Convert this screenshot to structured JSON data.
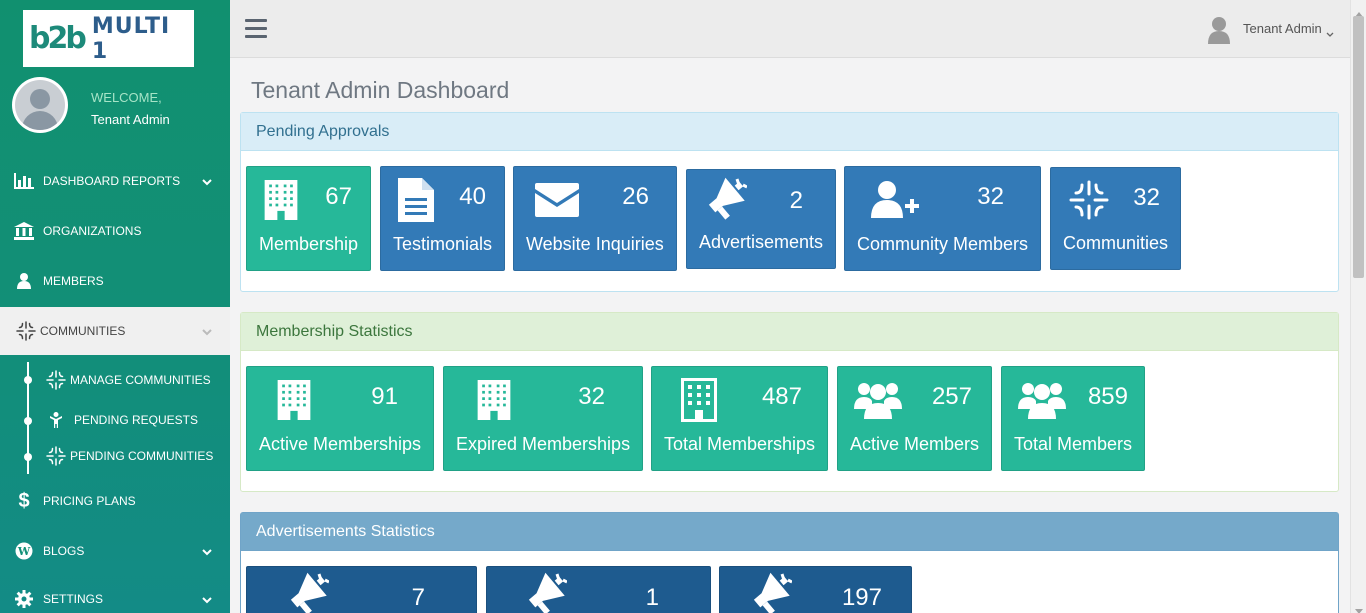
{
  "brand": {
    "logo_mark": "b2b",
    "logo_name": "MULTI 1"
  },
  "sidebar": {
    "welcome": "WELCOME,",
    "user_name": "Tenant Admin",
    "items": [
      {
        "label": "DASHBOARD REPORTS",
        "icon": "bar-chart-icon"
      },
      {
        "label": "ORGANIZATIONS",
        "icon": "bank-icon"
      },
      {
        "label": "MEMBERS",
        "icon": "user-icon"
      },
      {
        "label": "COMMUNITIES",
        "icon": "communities-icon"
      },
      {
        "label": "PRICING PLANS",
        "icon": "dollar-icon"
      },
      {
        "label": "BLOGS",
        "icon": "wordpress-icon"
      },
      {
        "label": "SETTINGS",
        "icon": "gear-icon"
      }
    ],
    "sub_items": [
      {
        "label": "MANAGE COMMUNITIES",
        "icon": "communities-icon"
      },
      {
        "label": "PENDING REQUESTS",
        "icon": "child-icon"
      },
      {
        "label": "PENDING COMMUNITIES",
        "icon": "communities-icon"
      }
    ]
  },
  "topbar": {
    "user_name": "Tenant Admin"
  },
  "page": {
    "title": "Tenant Admin Dashboard"
  },
  "pending": {
    "title": "Pending Approvals",
    "tiles": [
      {
        "value": "67",
        "label": "Membership",
        "icon": "building-icon"
      },
      {
        "value": "40",
        "label": "Testimonials",
        "icon": "file-text-icon"
      },
      {
        "value": "26",
        "label": "Website Inquiries",
        "icon": "envelope-icon"
      },
      {
        "value": "2",
        "label": "Advertisements",
        "icon": "bullhorn-icon"
      },
      {
        "value": "32",
        "label": "Community Members",
        "icon": "user-plus-icon"
      },
      {
        "value": "32",
        "label": "Communities",
        "icon": "communities-icon"
      }
    ]
  },
  "membership": {
    "title": "Membership Statistics",
    "tiles": [
      {
        "value": "91",
        "label": "Active Memberships",
        "icon": "building-icon"
      },
      {
        "value": "32",
        "label": "Expired Memberships",
        "icon": "building-icon"
      },
      {
        "value": "487",
        "label": "Total Memberships",
        "icon": "building-outline-icon"
      },
      {
        "value": "257",
        "label": "Active Members",
        "icon": "users-icon"
      },
      {
        "value": "859",
        "label": "Total Members",
        "icon": "users-icon"
      }
    ]
  },
  "ads": {
    "title": "Advertisements Statistics",
    "tiles": [
      {
        "value": "7",
        "icon": "bullhorn-icon"
      },
      {
        "value": "1",
        "icon": "bullhorn-icon"
      },
      {
        "value": "197",
        "icon": "bullhorn-icon"
      }
    ]
  },
  "colors": {
    "sidebar": "#11906f",
    "tile_blue": "#337ab7",
    "tile_green": "#26b899",
    "tile_navy": "#1e5b8f"
  }
}
